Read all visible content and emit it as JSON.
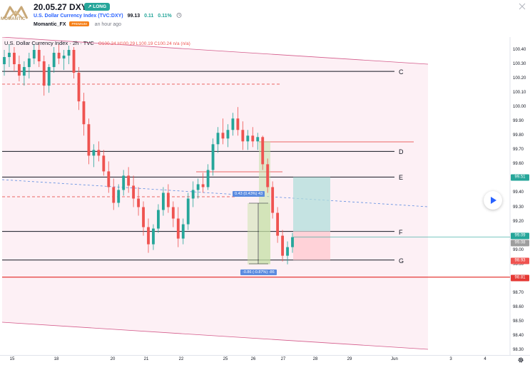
{
  "header": {
    "title": "20.05.27 DXY",
    "badge": "LONG",
    "symbol_name": "U.S. Dollar Currency Index (TVC:DXY)",
    "last_price": "99.13",
    "change": "0.11",
    "change_pct": "0.11%",
    "author": "Momantic_FX",
    "author_badge": "PREMIUM",
    "posted": "an hour ago",
    "logo_text": "MOMANTIC"
  },
  "legend": {
    "text": "U.S. Dollar Currency Index · 2h · TVC",
    "ohlc": "O100.24 H100.29 L100.19 C100.24 n/a (n/a)"
  },
  "levels": {
    "C": "C",
    "D": "D",
    "E": "E",
    "F": "F",
    "G": "G"
  },
  "measure": {
    "upper": "0.43 (0.43%) 43",
    "lower": "-0.86 (-0.87%) -86"
  },
  "price_tags": {
    "target": "99.51",
    "last": "99.09",
    "prev": "99.08",
    "stop": "98.93",
    "support": "98.81"
  },
  "colors": {
    "up": "#26a69a",
    "down": "#ef5350",
    "level": "#131722",
    "red_line": "#e53935",
    "channel": "#c2185b",
    "channel_fill": "#fce4ec",
    "target_zone": "#b2dfdb",
    "stop_zone": "#ffcdd2",
    "measure": "#5b8be0"
  },
  "chart_data": {
    "type": "candlestick",
    "y_ticks": [
      "100.40",
      "100.30",
      "100.20",
      "100.10",
      "100.00",
      "99.90",
      "99.80",
      "99.70",
      "99.60",
      "99.50",
      "99.40",
      "99.30",
      "99.20",
      "99.10",
      "99.00",
      "98.90",
      "98.80",
      "98.70",
      "98.60",
      "98.50",
      "98.40",
      "98.30"
    ],
    "x_ticks": [
      "15",
      "18",
      "20",
      "21",
      "22",
      "25",
      "26",
      "27",
      "28",
      "29",
      "Jun",
      "3",
      "4"
    ],
    "ylim": [
      98.28,
      100.46
    ],
    "horizontal_levels": [
      {
        "label": "C",
        "value": 100.25
      },
      {
        "label": "D",
        "value": 99.69
      },
      {
        "label": "E",
        "value": 99.51
      },
      {
        "label": "F",
        "value": 99.13
      },
      {
        "label": "G",
        "value": 98.93
      }
    ],
    "support_line": 98.81,
    "candles": [
      [
        100.3,
        100.4,
        100.22,
        100.35
      ],
      [
        100.35,
        100.44,
        100.28,
        100.38
      ],
      [
        100.38,
        100.42,
        100.25,
        100.3
      ],
      [
        100.3,
        100.36,
        100.18,
        100.22
      ],
      [
        100.22,
        100.32,
        100.15,
        100.28
      ],
      [
        100.28,
        100.38,
        100.2,
        100.34
      ],
      [
        100.34,
        100.44,
        100.3,
        100.4
      ],
      [
        100.4,
        100.45,
        100.28,
        100.32
      ],
      [
        100.32,
        100.36,
        100.08,
        100.15
      ],
      [
        100.15,
        100.3,
        100.1,
        100.28
      ],
      [
        100.28,
        100.42,
        100.24,
        100.38
      ],
      [
        100.38,
        100.44,
        100.3,
        100.34
      ],
      [
        100.34,
        100.4,
        100.26,
        100.36
      ],
      [
        100.36,
        100.43,
        100.3,
        100.4
      ],
      [
        100.4,
        100.42,
        100.2,
        100.24
      ],
      [
        100.24,
        100.28,
        99.98,
        100.04
      ],
      [
        100.04,
        100.1,
        99.8,
        99.88
      ],
      [
        99.88,
        99.92,
        99.6,
        99.66
      ],
      [
        99.66,
        99.74,
        99.58,
        99.7
      ],
      [
        99.7,
        99.76,
        99.62,
        99.66
      ],
      [
        99.66,
        99.7,
        99.52,
        99.55
      ],
      [
        99.55,
        99.62,
        99.4,
        99.44
      ],
      [
        99.44,
        99.5,
        99.28,
        99.33
      ],
      [
        99.33,
        99.46,
        99.3,
        99.42
      ],
      [
        99.42,
        99.56,
        99.38,
        99.52
      ],
      [
        99.52,
        99.58,
        99.4,
        99.45
      ],
      [
        99.45,
        99.52,
        99.3,
        99.36
      ],
      [
        99.36,
        99.44,
        99.24,
        99.3
      ],
      [
        99.3,
        99.34,
        99.1,
        99.16
      ],
      [
        99.16,
        99.22,
        98.98,
        99.04
      ],
      [
        99.04,
        99.18,
        99.0,
        99.15
      ],
      [
        99.15,
        99.32,
        99.12,
        99.28
      ],
      [
        99.28,
        99.44,
        99.24,
        99.4
      ],
      [
        99.4,
        99.46,
        99.26,
        99.3
      ],
      [
        99.3,
        99.34,
        99.16,
        99.22
      ],
      [
        99.22,
        99.3,
        99.02,
        99.08
      ],
      [
        99.08,
        99.22,
        99.04,
        99.18
      ],
      [
        99.18,
        99.4,
        99.14,
        99.36
      ],
      [
        99.36,
        99.48,
        99.3,
        99.42
      ],
      [
        99.42,
        99.5,
        99.36,
        99.46
      ],
      [
        99.46,
        99.54,
        99.4,
        99.44
      ],
      [
        99.44,
        99.6,
        99.42,
        99.56
      ],
      [
        99.56,
        99.78,
        99.52,
        99.74
      ],
      [
        99.74,
        99.86,
        99.68,
        99.82
      ],
      [
        99.82,
        99.92,
        99.74,
        99.78
      ],
      [
        99.78,
        99.88,
        99.72,
        99.84
      ],
      [
        99.84,
        99.96,
        99.8,
        99.92
      ],
      [
        99.92,
        100.0,
        99.8,
        99.84
      ],
      [
        99.84,
        99.9,
        99.7,
        99.76
      ],
      [
        99.76,
        99.84,
        99.7,
        99.8
      ],
      [
        99.8,
        99.86,
        99.72,
        99.76
      ],
      [
        99.76,
        99.82,
        99.7,
        99.79
      ],
      [
        99.79,
        99.8,
        99.56,
        99.6
      ],
      [
        99.6,
        99.64,
        99.4,
        99.44
      ],
      [
        99.44,
        99.48,
        99.22,
        99.26
      ],
      [
        99.26,
        99.3,
        99.05,
        99.1
      ],
      [
        99.1,
        99.14,
        98.92,
        98.96
      ],
      [
        98.96,
        99.06,
        98.9,
        99.02
      ],
      [
        99.02,
        99.12,
        98.98,
        99.09
      ]
    ]
  }
}
